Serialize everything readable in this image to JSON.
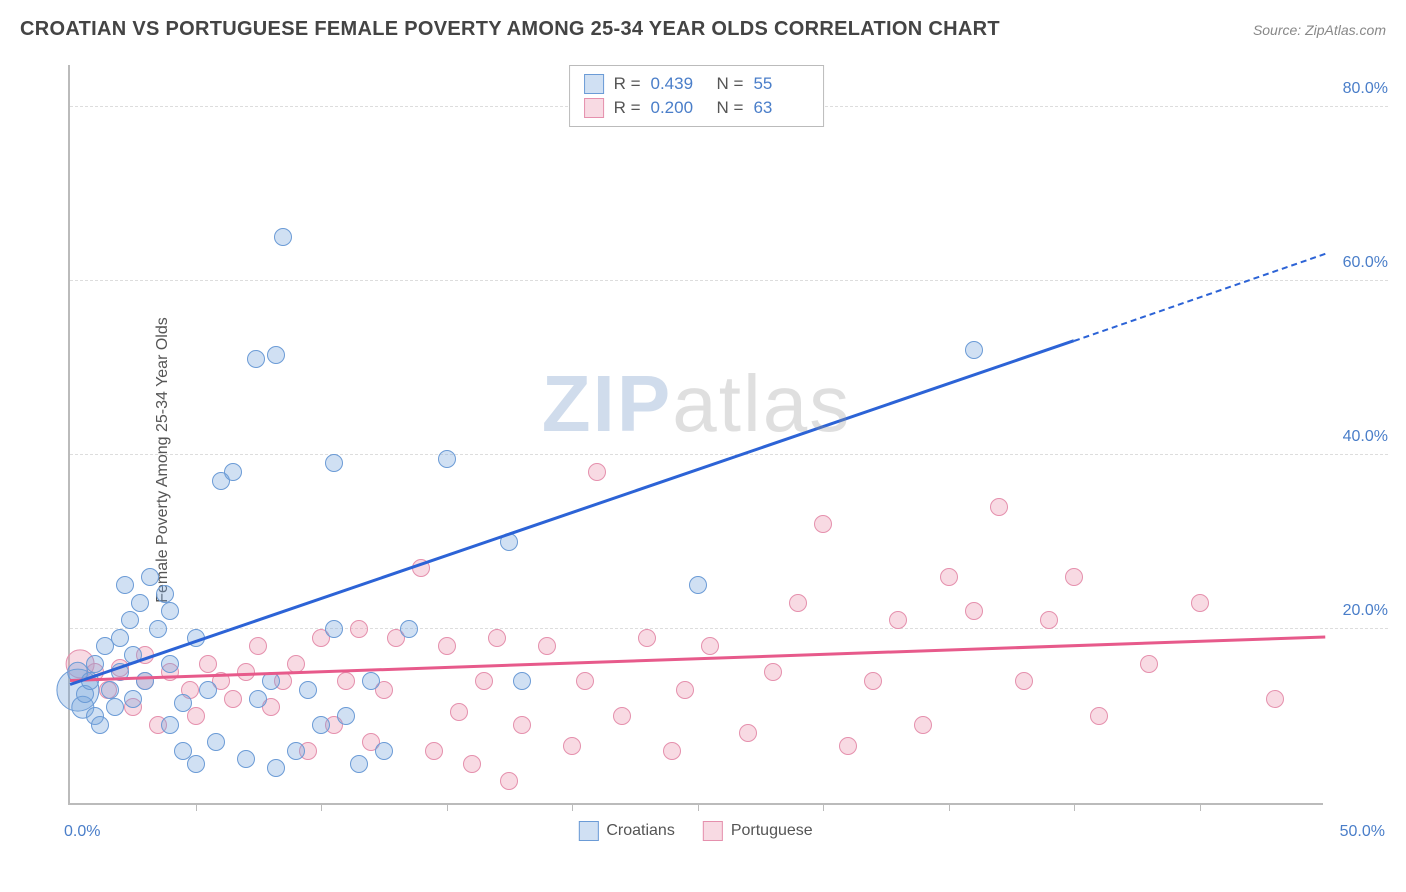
{
  "header": {
    "title": "CROATIAN VS PORTUGUESE FEMALE POVERTY AMONG 25-34 YEAR OLDS CORRELATION CHART",
    "source_prefix": "Source: ",
    "source_name": "ZipAtlas.com"
  },
  "watermark": {
    "zip": "ZIP",
    "atlas": "atlas"
  },
  "chart": {
    "type": "scatter",
    "y_label": "Female Poverty Among 25-34 Year Olds",
    "xlim": [
      0,
      50
    ],
    "ylim": [
      0,
      85
    ],
    "x_min_label": "0.0%",
    "x_max_label": "50.0%",
    "x_tick_positions": [
      5,
      10,
      15,
      20,
      25,
      30,
      35,
      40,
      45
    ],
    "y_grid": [
      {
        "v": 20,
        "label": "20.0%"
      },
      {
        "v": 40,
        "label": "40.0%"
      },
      {
        "v": 60,
        "label": "60.0%"
      },
      {
        "v": 80,
        "label": "80.0%"
      }
    ],
    "background_color": "#ffffff",
    "grid_color": "#dddddd",
    "axis_color": "#bbbbbb",
    "tick_label_color": "#4a7ec9",
    "marker_base_radius": 9,
    "series": {
      "croatians": {
        "label": "Croatians",
        "fill": "rgba(120,165,220,0.35)",
        "stroke": "#6b9bd6",
        "trend_color": "#2c63d6",
        "R": "0.439",
        "N": "55",
        "trend": {
          "x1": 0,
          "y1": 13.5,
          "x2": 40,
          "y2": 53,
          "dash_to_x": 50,
          "dash_to_y": 63
        },
        "points": [
          [
            0.3,
            13,
            2.4
          ],
          [
            0.3,
            15,
            1.2
          ],
          [
            0.5,
            11,
            1.3
          ],
          [
            0.6,
            12.5,
            1
          ],
          [
            0.8,
            14,
            1
          ],
          [
            1.0,
            10,
            1
          ],
          [
            1.0,
            16,
            1
          ],
          [
            1.2,
            9,
            1
          ],
          [
            1.4,
            18,
            1
          ],
          [
            1.6,
            13,
            1
          ],
          [
            1.8,
            11,
            1
          ],
          [
            2.0,
            15,
            1
          ],
          [
            2.0,
            19,
            1
          ],
          [
            2.2,
            25,
            1
          ],
          [
            2.4,
            21,
            1
          ],
          [
            2.5,
            17,
            1
          ],
          [
            2.5,
            12,
            1
          ],
          [
            2.8,
            23,
            1
          ],
          [
            3.0,
            14,
            1
          ],
          [
            3.2,
            26,
            1
          ],
          [
            3.5,
            20,
            1
          ],
          [
            3.8,
            24,
            1
          ],
          [
            4.0,
            16,
            1
          ],
          [
            4.0,
            22,
            1
          ],
          [
            4.0,
            9,
            1
          ],
          [
            4.5,
            6,
            1
          ],
          [
            4.5,
            11.5,
            1
          ],
          [
            5.0,
            19,
            1
          ],
          [
            5.0,
            4.5,
            1
          ],
          [
            5.5,
            13,
            1
          ],
          [
            5.8,
            7,
            1
          ],
          [
            6.0,
            37,
            1
          ],
          [
            6.5,
            38,
            1
          ],
          [
            7.0,
            5,
            1
          ],
          [
            7.4,
            51,
            1
          ],
          [
            7.5,
            12,
            1
          ],
          [
            8.0,
            14,
            1
          ],
          [
            8.2,
            4,
            1
          ],
          [
            8.2,
            51.5,
            1
          ],
          [
            8.5,
            65,
            1
          ],
          [
            9.0,
            6,
            1
          ],
          [
            9.5,
            13,
            1
          ],
          [
            10.0,
            9,
            1
          ],
          [
            10.5,
            20,
            1
          ],
          [
            10.5,
            39,
            1
          ],
          [
            11.0,
            10,
            1
          ],
          [
            11.5,
            4.5,
            1
          ],
          [
            12.0,
            14,
            1
          ],
          [
            12.5,
            6,
            1
          ],
          [
            13.5,
            20,
            1
          ],
          [
            15.0,
            39.5,
            1
          ],
          [
            17.5,
            30,
            1
          ],
          [
            18.0,
            14,
            1
          ],
          [
            25.0,
            25,
            1
          ],
          [
            36.0,
            52,
            1
          ]
        ]
      },
      "portuguese": {
        "label": "Portuguese",
        "fill": "rgba(235,150,175,0.35)",
        "stroke": "#e590ad",
        "trend_color": "#e75a8b",
        "R": "0.200",
        "N": "63",
        "trend": {
          "x1": 0,
          "y1": 14,
          "x2": 50,
          "y2": 19
        },
        "points": [
          [
            0.4,
            16,
            1.6
          ],
          [
            1,
            15,
            1
          ],
          [
            1.5,
            13,
            1
          ],
          [
            2,
            15.5,
            1
          ],
          [
            2.5,
            11,
            1
          ],
          [
            3,
            14,
            1
          ],
          [
            3,
            17,
            1
          ],
          [
            3.5,
            9,
            1
          ],
          [
            4,
            15,
            1
          ],
          [
            4.8,
            13,
            1
          ],
          [
            5,
            10,
            1
          ],
          [
            5.5,
            16,
            1
          ],
          [
            6,
            14,
            1
          ],
          [
            6.5,
            12,
            1
          ],
          [
            7,
            15,
            1
          ],
          [
            7.5,
            18,
            1
          ],
          [
            8,
            11,
            1
          ],
          [
            8.5,
            14,
            1
          ],
          [
            9,
            16,
            1
          ],
          [
            9.5,
            6,
            1
          ],
          [
            10,
            19,
            1
          ],
          [
            10.5,
            9,
            1
          ],
          [
            11,
            14,
            1
          ],
          [
            11.5,
            20,
            1
          ],
          [
            12,
            7,
            1
          ],
          [
            12.5,
            13,
            1
          ],
          [
            13,
            19,
            1
          ],
          [
            14,
            27,
            1
          ],
          [
            14.5,
            6,
            1
          ],
          [
            15,
            18,
            1
          ],
          [
            15.5,
            10.5,
            1
          ],
          [
            16,
            4.5,
            1
          ],
          [
            16.5,
            14,
            1
          ],
          [
            17,
            19,
            1
          ],
          [
            17.5,
            2.5,
            1
          ],
          [
            18,
            9,
            1
          ],
          [
            19,
            18,
            1
          ],
          [
            20,
            6.5,
            1
          ],
          [
            20.5,
            14,
            1
          ],
          [
            21,
            38,
            1
          ],
          [
            22,
            10,
            1
          ],
          [
            23,
            19,
            1
          ],
          [
            24,
            6,
            1
          ],
          [
            24.5,
            13,
            1
          ],
          [
            25.5,
            18,
            1
          ],
          [
            27,
            8,
            1
          ],
          [
            28,
            15,
            1
          ],
          [
            29,
            23,
            1
          ],
          [
            30,
            32,
            1
          ],
          [
            31,
            6.5,
            1
          ],
          [
            32,
            14,
            1
          ],
          [
            33,
            21,
            1
          ],
          [
            34,
            9,
            1
          ],
          [
            35,
            26,
            1
          ],
          [
            36,
            22,
            1
          ],
          [
            37,
            34,
            1
          ],
          [
            38,
            14,
            1
          ],
          [
            39,
            21,
            1
          ],
          [
            40,
            26,
            1
          ],
          [
            41,
            10,
            1
          ],
          [
            43,
            16,
            1
          ],
          [
            45,
            23,
            1
          ],
          [
            48,
            12,
            1
          ]
        ]
      }
    }
  },
  "legend_labels": {
    "R": "R =",
    "N": "N ="
  }
}
